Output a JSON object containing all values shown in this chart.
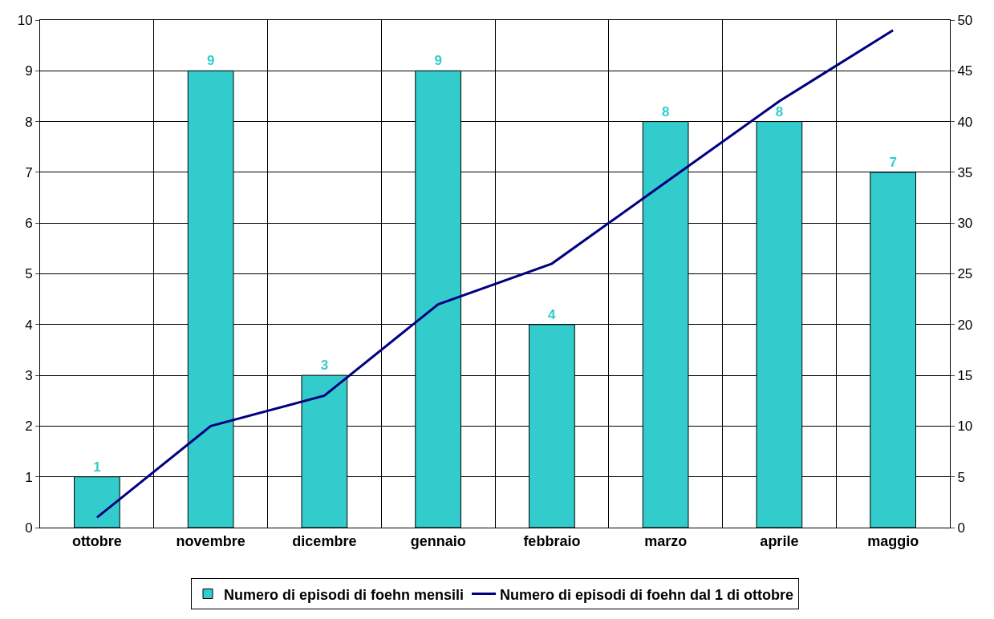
{
  "chart_data": {
    "type": "bar",
    "categories": [
      "ottobre",
      "novembre",
      "dicembre",
      "gennaio",
      "febbraio",
      "marzo",
      "aprile",
      "maggio"
    ],
    "series": [
      {
        "name": "Numero di episodi di foehn mensili",
        "color": "#33cccc",
        "values": [
          1,
          9,
          3,
          9,
          4,
          8,
          8,
          7
        ],
        "data_labels": true
      },
      {
        "name": "Numero di episodi di foehn dal 1 di ottobre",
        "type": "line",
        "axis": "y2",
        "color": "#000080",
        "values": [
          1,
          10,
          13,
          22,
          26,
          34,
          42,
          49
        ],
        "marker": "none"
      }
    ],
    "ylim": [
      0,
      10
    ],
    "yticks": [
      0,
      1,
      2,
      3,
      4,
      5,
      6,
      7,
      8,
      9,
      10
    ],
    "y2lim": [
      0,
      50
    ],
    "y2ticks": [
      0,
      5,
      10,
      15,
      20,
      25,
      30,
      35,
      40,
      45,
      50
    ],
    "grid": true,
    "legend": "bottom"
  }
}
